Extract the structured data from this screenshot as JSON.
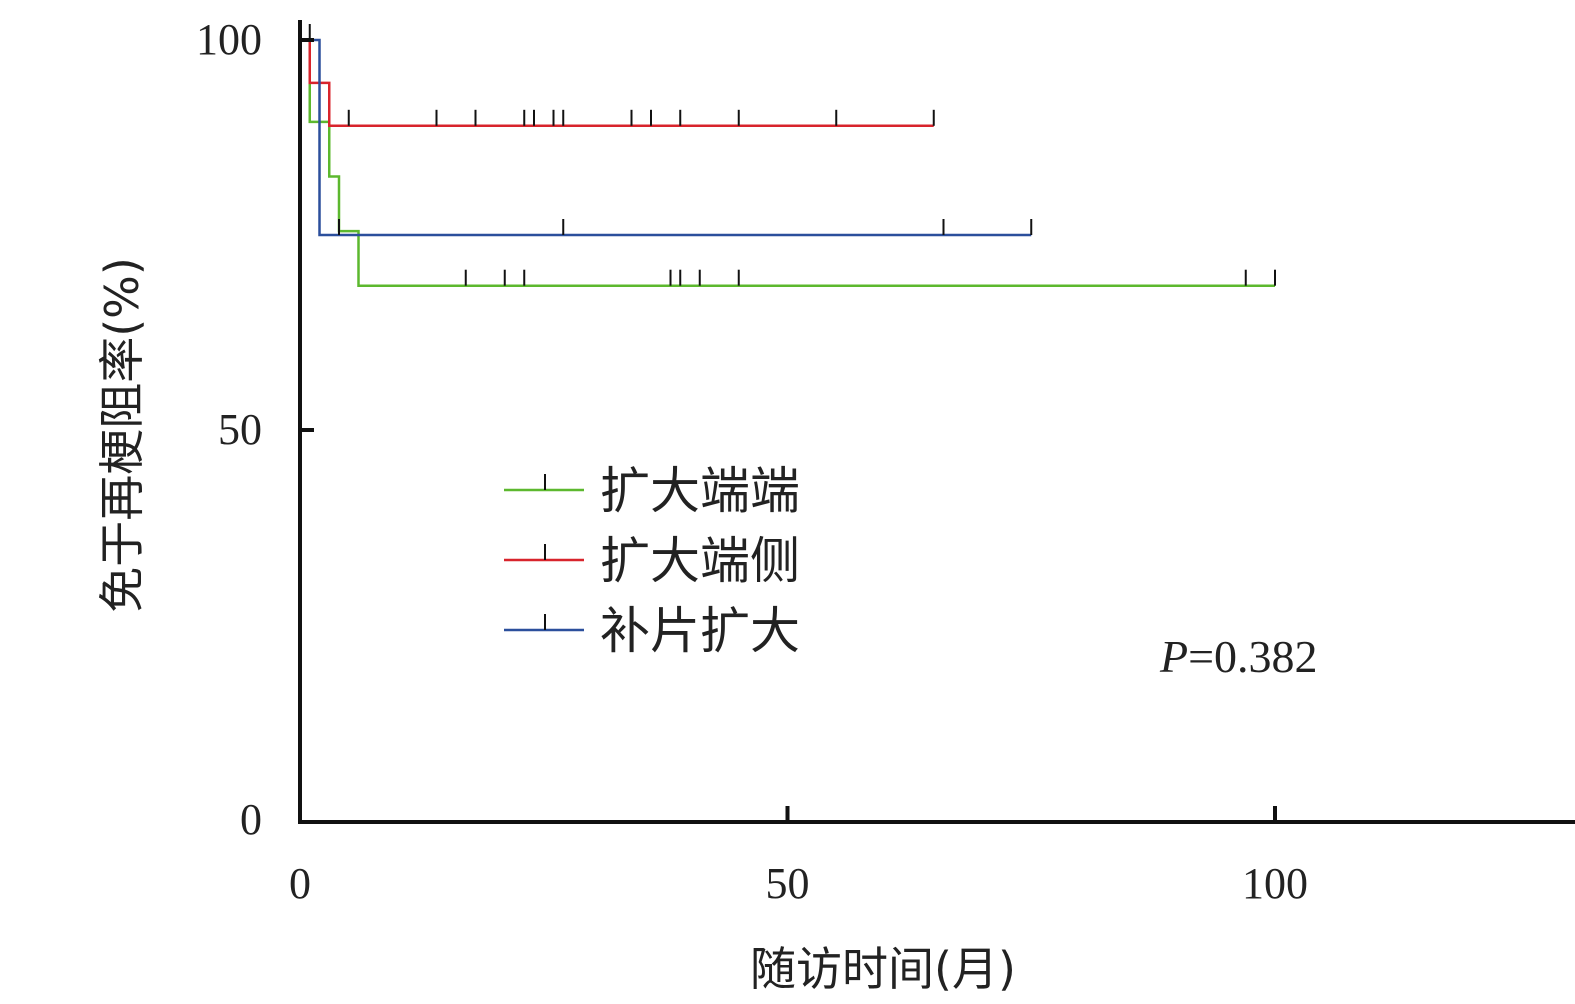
{
  "chart_data": {
    "type": "line",
    "step": true,
    "xlabel": "随访时间(月)",
    "ylabel": "免于再梗阻率(%)",
    "xlim": [
      0,
      120
    ],
    "ylim": [
      0,
      100
    ],
    "x_ticks": [
      0,
      50,
      100
    ],
    "y_ticks": [
      0,
      50,
      100
    ],
    "grid": false,
    "legend_position": "center-left",
    "annotation": {
      "label": "P",
      "value": "=0.382"
    },
    "series": [
      {
        "name": "扩大端端",
        "color": "#5cb82e",
        "steps": [
          [
            0,
            100
          ],
          [
            1,
            89.5
          ],
          [
            3,
            82.5
          ],
          [
            4,
            75.5
          ],
          [
            6,
            68.5
          ],
          [
            100,
            68.5
          ]
        ],
        "censored": [
          17,
          21,
          23,
          38,
          39,
          41,
          45,
          97,
          100
        ]
      },
      {
        "name": "扩大端侧",
        "color": "#d8242c",
        "steps": [
          [
            0,
            100
          ],
          [
            1,
            94.5
          ],
          [
            3,
            89
          ],
          [
            65,
            89
          ]
        ],
        "censored": [
          5,
          14,
          18,
          23,
          24,
          26,
          27,
          34,
          36,
          39,
          45,
          55,
          65
        ]
      },
      {
        "name": "补片扩大",
        "color": "#2b4f9c",
        "steps": [
          [
            0,
            100
          ],
          [
            2,
            75
          ],
          [
            75,
            75
          ]
        ],
        "censored": [
          1,
          4,
          27,
          66,
          75
        ]
      }
    ]
  }
}
